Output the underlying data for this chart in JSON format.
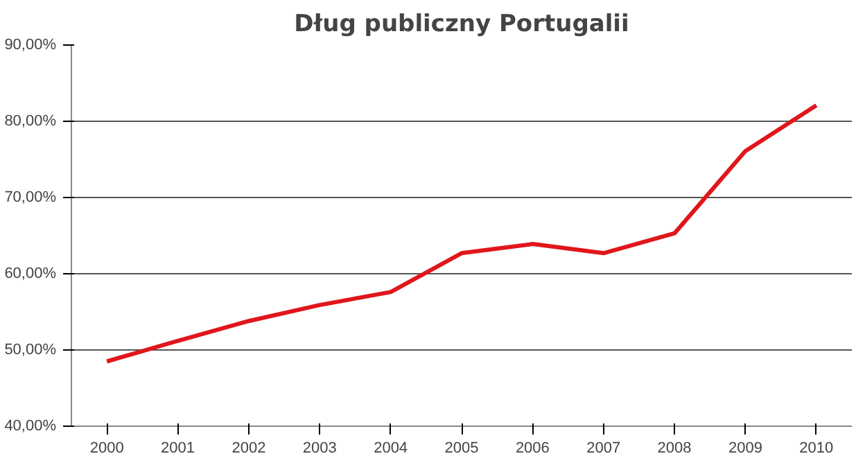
{
  "chart_data": {
    "type": "line",
    "title": "Dług publiczny Portugalii",
    "categories": [
      "2000",
      "2001",
      "2002",
      "2003",
      "2004",
      "2005",
      "2006",
      "2007",
      "2008",
      "2009",
      "2010"
    ],
    "series": [
      {
        "color": "#e0161b",
        "values": [
          48.5,
          51.2,
          53.8,
          55.9,
          57.6,
          62.7,
          63.9,
          62.7,
          65.3,
          76.1,
          82.1
        ]
      }
    ],
    "ylim": [
      40,
      90
    ],
    "yticks": [
      {
        "value": 40,
        "label": "40,00%"
      },
      {
        "value": 50,
        "label": "50,00%"
      },
      {
        "value": 60,
        "label": "60,00%"
      },
      {
        "value": 70,
        "label": "70,00%"
      },
      {
        "value": 80,
        "label": "80,00%"
      },
      {
        "value": 90,
        "label": "90,00%"
      }
    ],
    "grid": "y",
    "marker": "none",
    "line_style": "solid"
  }
}
